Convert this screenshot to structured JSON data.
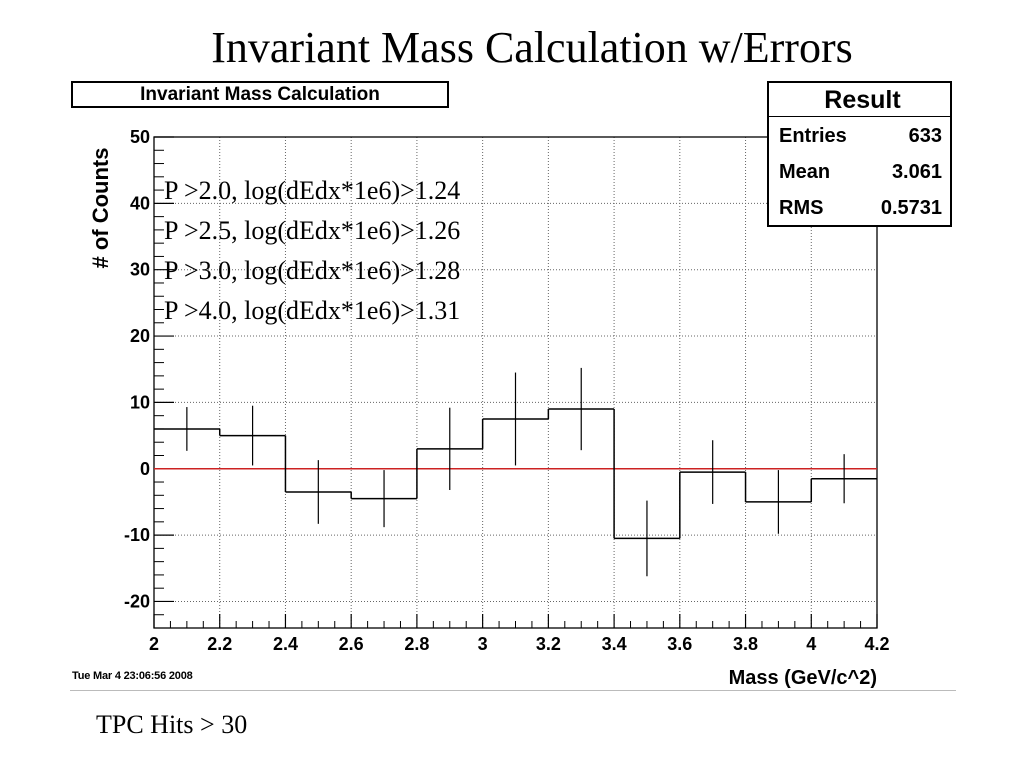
{
  "slide": {
    "title": "Invariant Mass Calculation w/Errors",
    "footnote": "TPC Hits > 30"
  },
  "plot": {
    "hist_title": "Invariant Mass Calculation",
    "timestamp": "Tue Mar  4 23:06:56 2008"
  },
  "stats": {
    "title": "Result",
    "rows": [
      {
        "label": "Entries",
        "value": "633"
      },
      {
        "label": "Mean",
        "value": "3.061"
      },
      {
        "label": "RMS",
        "value": "0.5731"
      }
    ]
  },
  "legend_text": [
    "P >2.0, log(dEdx*1e6)>1.24",
    "P >2.5, log(dEdx*1e6)>1.26",
    "P >3.0, log(dEdx*1e6)>1.28",
    "P >4.0, log(dEdx*1e6)>1.31"
  ],
  "colors": {
    "zero_line": "#cc2222",
    "grid": "#666666",
    "histogram": "#000000"
  },
  "chart_data": {
    "type": "bar",
    "title": "Invariant Mass Calculation",
    "xlabel": "Mass (GeV/c^2)",
    "ylabel": "# of Counts",
    "xlim": [
      2,
      4.2
    ],
    "ylim": [
      -24,
      50
    ],
    "grid": true,
    "x_ticks": [
      2,
      2.2,
      2.4,
      2.6,
      2.8,
      3,
      3.2,
      3.4,
      3.6,
      3.8,
      4,
      4.2
    ],
    "x_tick_labels": [
      "2",
      "2.2",
      "2.4",
      "2.6",
      "2.8",
      "3",
      "3.2",
      "3.4",
      "3.6",
      "3.8",
      "4",
      "4.2"
    ],
    "y_ticks": [
      -20,
      -10,
      0,
      10,
      20,
      30,
      40,
      50
    ],
    "y_tick_labels": [
      "-20",
      "-10",
      "0",
      "10",
      "20",
      "30",
      "40",
      "50"
    ],
    "bin_edges": [
      2.0,
      2.2,
      2.4,
      2.6,
      2.8,
      3.0,
      3.2,
      3.4,
      3.6,
      3.8,
      4.0,
      4.2
    ],
    "bin_centers": [
      2.1,
      2.3,
      2.5,
      2.7,
      2.9,
      3.1,
      3.3,
      3.5,
      3.7,
      3.9,
      4.1
    ],
    "values": [
      6,
      5,
      -3.5,
      -4.5,
      3,
      7.5,
      9,
      -10.5,
      -0.5,
      -5,
      -1.5
    ],
    "errors": [
      3.3,
      4.5,
      4.8,
      4.3,
      6.2,
      7.0,
      6.2,
      5.7,
      4.8,
      4.8,
      3.7
    ],
    "reference_line": 0
  }
}
